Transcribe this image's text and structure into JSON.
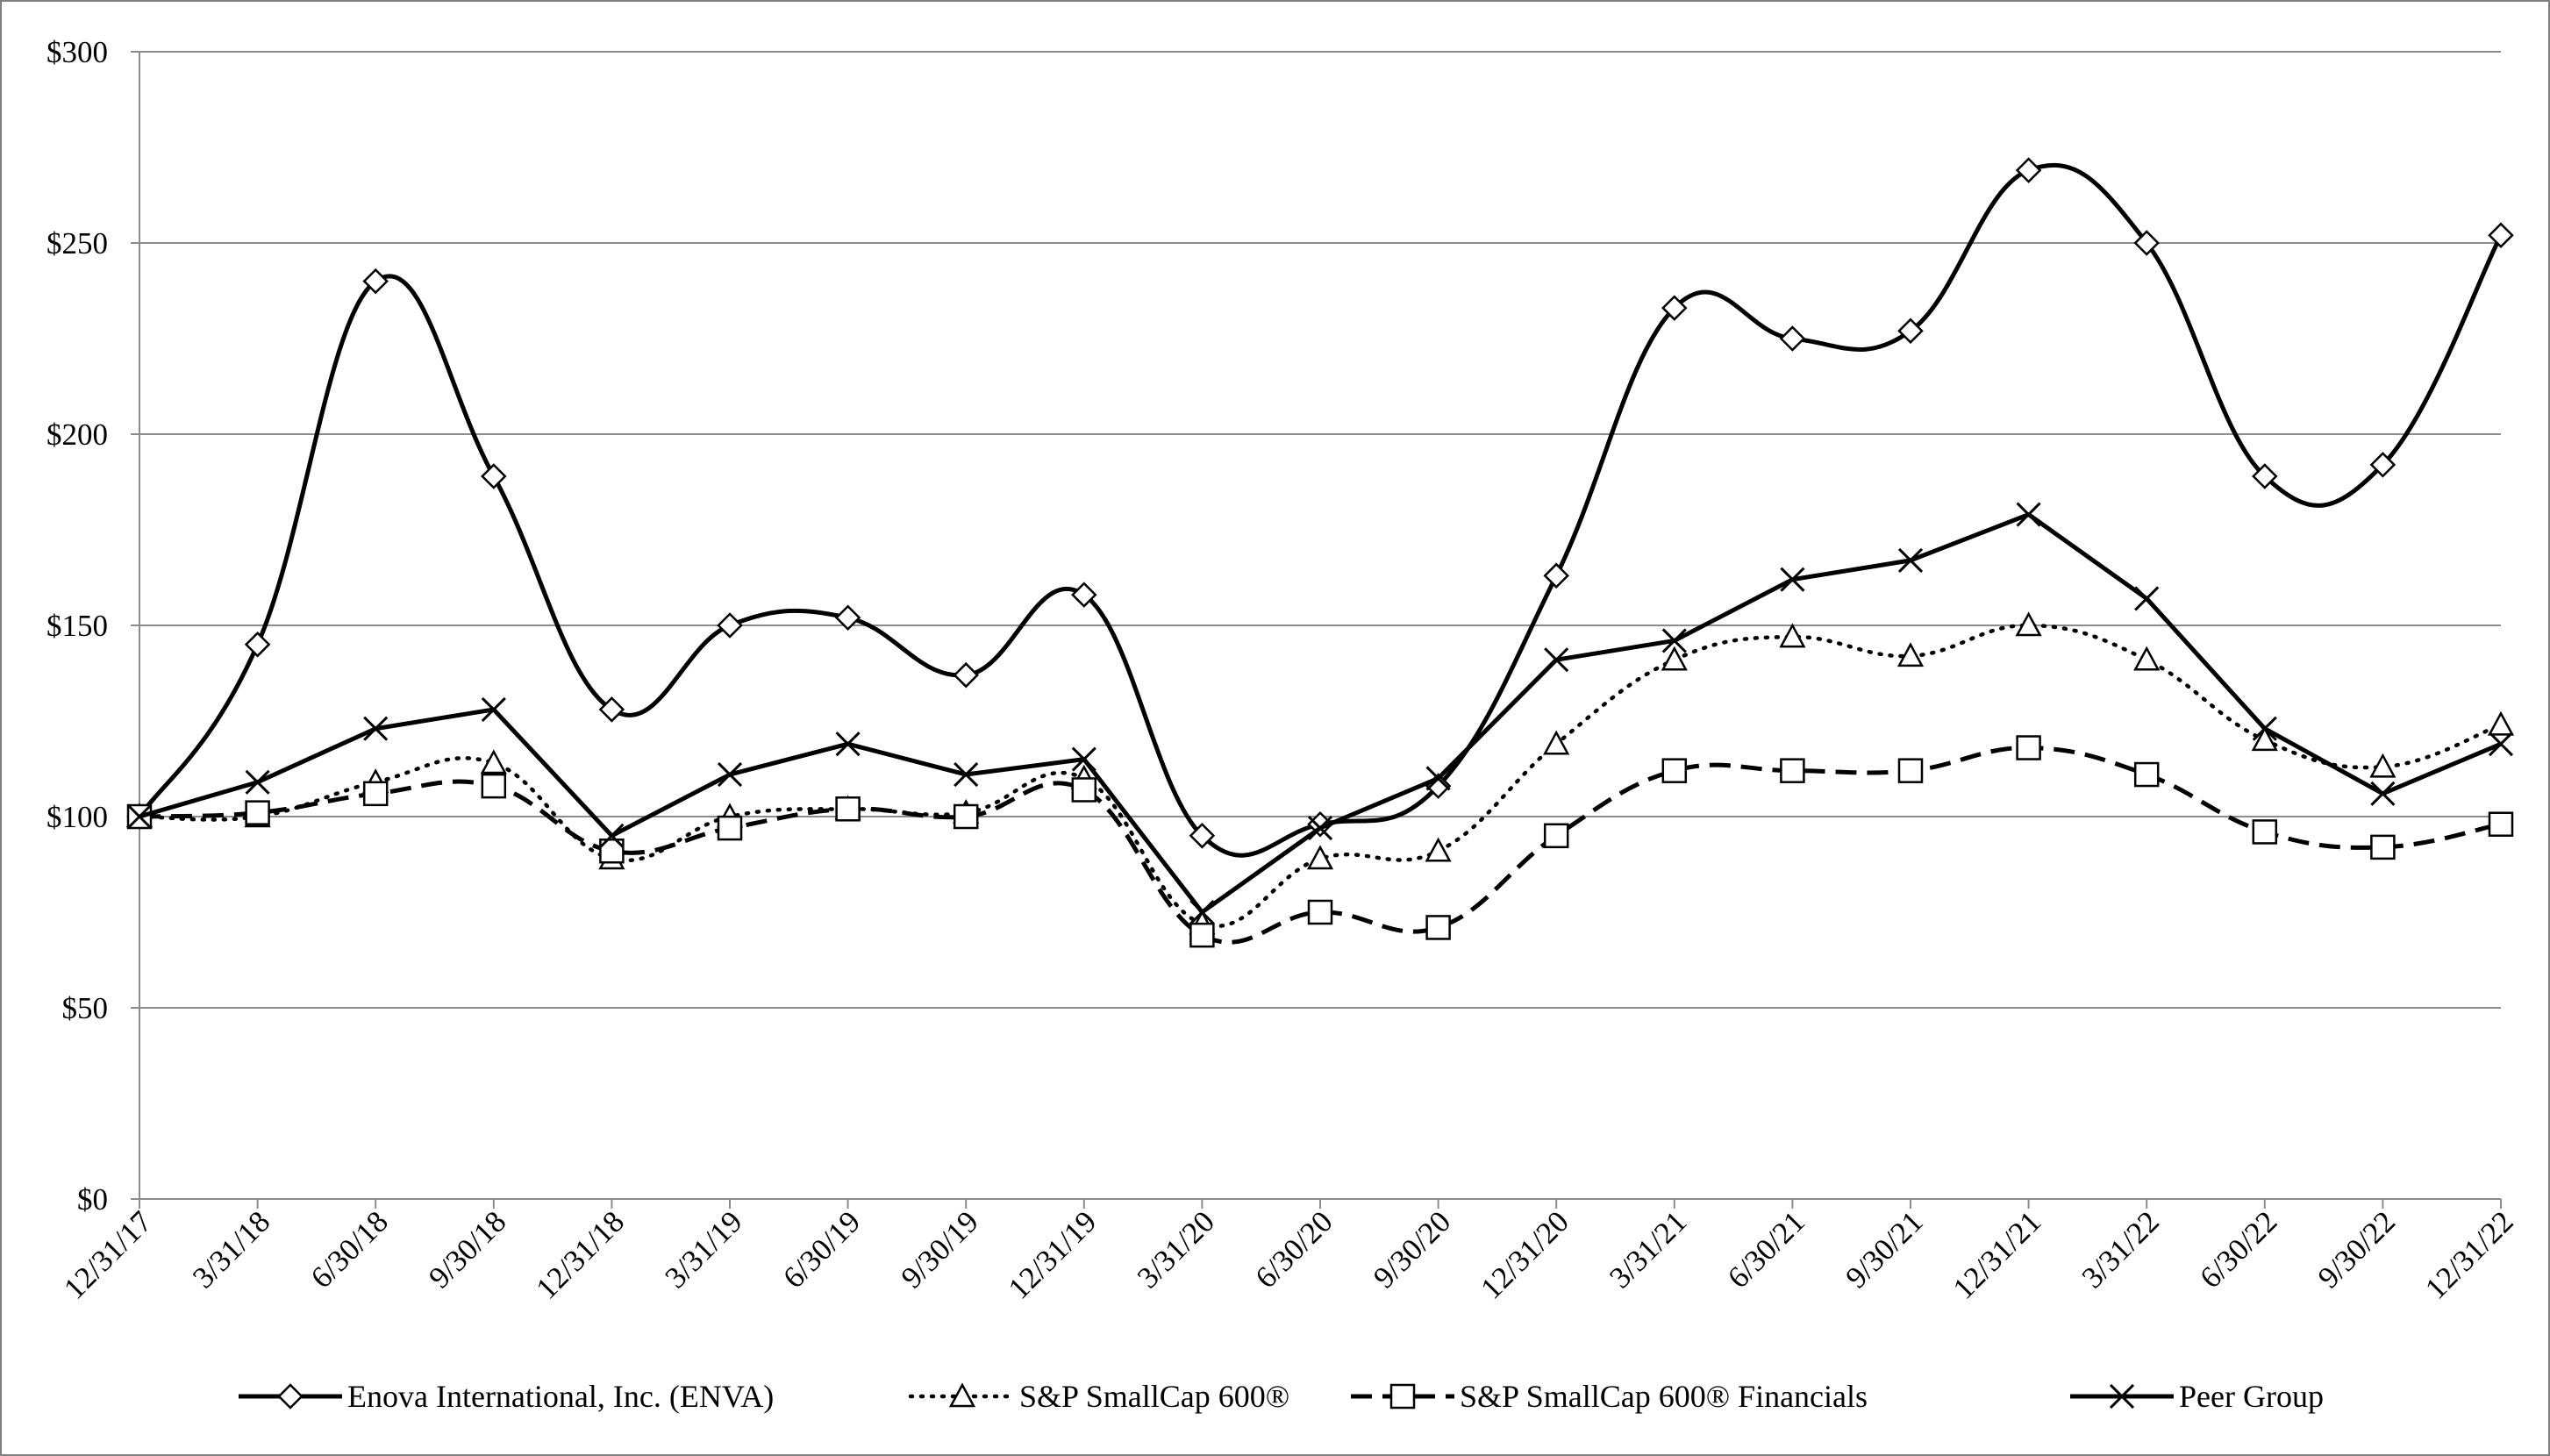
{
  "chart_data": {
    "type": "line",
    "title": "",
    "xlabel": "",
    "ylabel": "",
    "ylim": [
      0,
      300
    ],
    "yticks": [
      "$0",
      "$50",
      "$100",
      "$150",
      "$200",
      "$250",
      "$300"
    ],
    "ytick_values": [
      0,
      50,
      100,
      150,
      200,
      250,
      300
    ],
    "categories": [
      "12/31/17",
      "3/31/18",
      "6/30/18",
      "9/30/18",
      "12/31/18",
      "3/31/19",
      "6/30/19",
      "9/30/19",
      "12/31/19",
      "3/31/20",
      "6/30/20",
      "9/30/20",
      "12/31/20",
      "3/31/21",
      "6/30/21",
      "9/30/21",
      "12/31/21",
      "3/31/22",
      "6/30/22",
      "9/30/22",
      "12/31/22"
    ],
    "grid": "horizontal",
    "legend_position": "bottom",
    "series": [
      {
        "name": "Enova International, Inc. (ENVA)",
        "marker": "diamond",
        "line": "solid",
        "smooth": true,
        "color": "#000000",
        "values": [
          100,
          145,
          240,
          189,
          128,
          150,
          152,
          137,
          158,
          95,
          98,
          108,
          163,
          233,
          225,
          227,
          269,
          250,
          189,
          192,
          252
        ]
      },
      {
        "name": "S&P SmallCap 600®",
        "marker": "triangle",
        "line": "dotted",
        "smooth": true,
        "color": "#000000",
        "values": [
          100,
          100,
          109,
          114,
          89,
          100,
          102,
          101,
          110,
          72,
          89,
          91,
          119,
          141,
          147,
          142,
          150,
          141,
          120,
          113,
          124
        ]
      },
      {
        "name": "S&P SmallCap 600® Financials",
        "marker": "square",
        "line": "dashed",
        "smooth": true,
        "color": "#000000",
        "values": [
          100,
          101,
          106,
          108,
          91,
          97,
          102,
          100,
          107,
          69,
          75,
          71,
          95,
          112,
          112,
          112,
          118,
          111,
          96,
          92,
          98
        ]
      },
      {
        "name": "Peer Group",
        "marker": "x",
        "line": "solid",
        "smooth": false,
        "color": "#000000",
        "values": [
          100,
          109,
          123,
          128,
          95,
          111,
          119,
          111,
          115,
          75,
          97,
          110,
          141,
          146,
          162,
          167,
          179,
          157,
          123,
          106,
          119
        ]
      }
    ]
  }
}
